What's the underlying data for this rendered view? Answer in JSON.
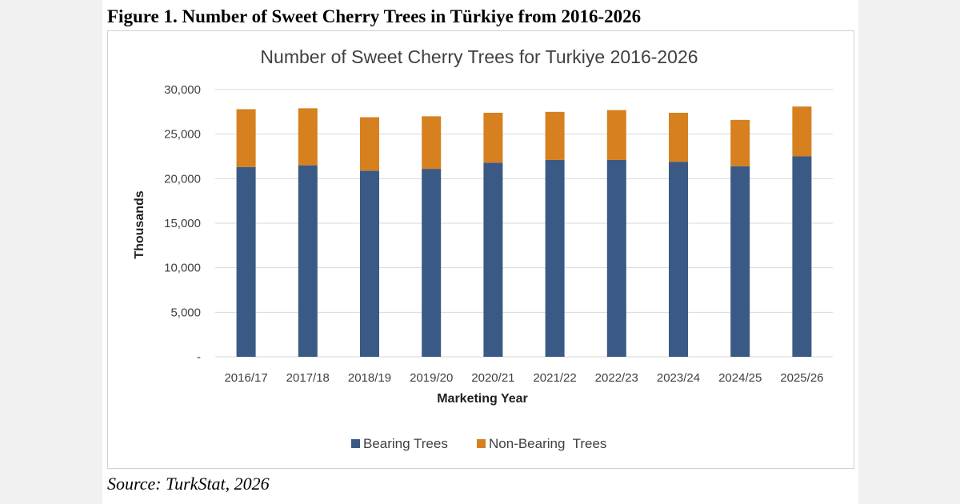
{
  "figure_caption": "Figure 1. Number of Sweet Cherry Trees in Türkiye from 2016-2026",
  "source_note": "Source: TurkStat, 2026",
  "colors": {
    "bearing": "#3a5a85",
    "non_bearing": "#d6801f",
    "gridline": "#d9d9d9"
  },
  "chart_data": {
    "type": "bar",
    "stacked": true,
    "title": "Number of Sweet Cherry Trees for Turkiye 2016-2026",
    "xlabel": "Marketing Year",
    "ylabel": "Thousands",
    "ylim": [
      0,
      30000
    ],
    "y_ticks": [
      0,
      5000,
      10000,
      15000,
      20000,
      25000,
      30000
    ],
    "y_tick_labels": [
      "-",
      "5,000",
      "10,000",
      "15,000",
      "20,000",
      "25,000",
      "30,000"
    ],
    "grid": true,
    "legend_position": "bottom",
    "categories": [
      "2016/17",
      "2017/18",
      "2018/19",
      "2019/20",
      "2020/21",
      "2021/22",
      "2022/23",
      "2023/24",
      "2024/25",
      "2025/26"
    ],
    "series": [
      {
        "name": "Bearing Trees",
        "color": "#3a5a85",
        "values": [
          21300,
          21500,
          20900,
          21100,
          21800,
          22100,
          22100,
          21900,
          21400,
          22500
        ]
      },
      {
        "name": "Non-Bearing  Trees",
        "color": "#d6801f",
        "values": [
          6500,
          6400,
          6000,
          5900,
          5600,
          5400,
          5600,
          5500,
          5200,
          5600
        ]
      }
    ]
  }
}
